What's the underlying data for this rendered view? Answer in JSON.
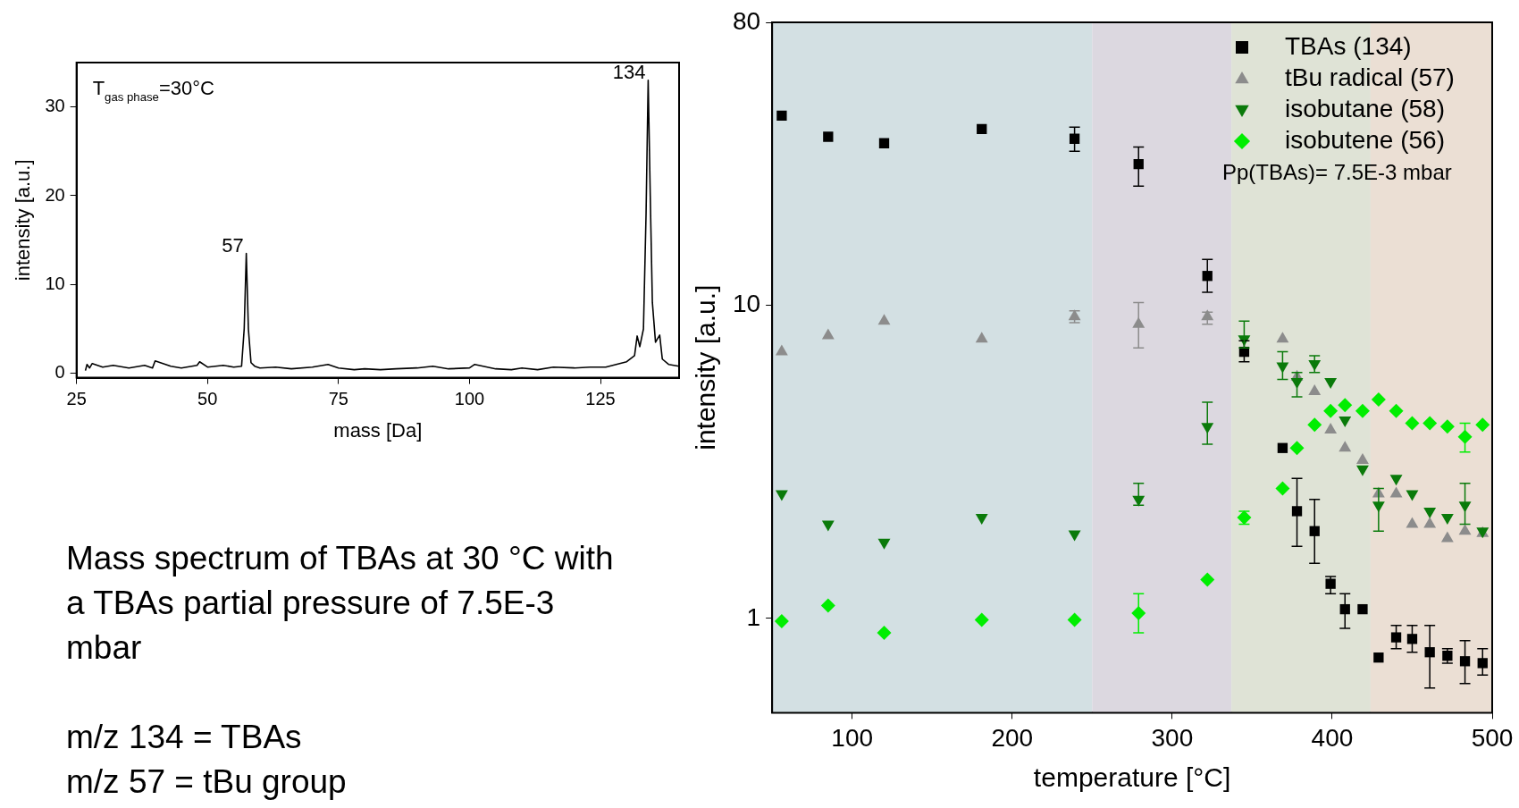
{
  "chart_data": [
    {
      "type": "line",
      "xlabel": "mass [Da]",
      "ylabel": "intensity [a.u.]",
      "xlim": [
        25,
        140
      ],
      "xticks": [
        25,
        50,
        75,
        100,
        125
      ],
      "ylim": [
        -0.5,
        35
      ],
      "yticks": [
        0,
        10,
        20,
        30
      ],
      "grid": false,
      "legend": false,
      "marker": "none",
      "annotations": [
        "T$_{gas phase}$=30°C",
        {
          "text": "57",
          "x": 57.4,
          "y": 13.5
        },
        {
          "text": "134",
          "x": 134.1,
          "y": 33
        }
      ],
      "series": [
        {
          "color": "#000000",
          "x": [
            26.7,
            27,
            27.5,
            28,
            30,
            32,
            35,
            38,
            39.5,
            40,
            43,
            45,
            48,
            48.5,
            50,
            53,
            55,
            56.5,
            57,
            57.4,
            57.8,
            58.3,
            59,
            60,
            63,
            66,
            70,
            73,
            75,
            78,
            80,
            83,
            86,
            90,
            93,
            96,
            100,
            101,
            105,
            108,
            110,
            113,
            116,
            120,
            123,
            126,
            128,
            130,
            131.5,
            132,
            132.5,
            133.2,
            133.7,
            134.1,
            134.5,
            134.9,
            135.5,
            136.3,
            136.8,
            138,
            140
          ],
          "values": [
            0.3,
            1.0,
            0.6,
            1.1,
            0.7,
            0.9,
            0.6,
            0.9,
            0.6,
            1.4,
            0.8,
            0.6,
            0.9,
            1.3,
            0.7,
            0.9,
            0.7,
            0.8,
            5,
            13.5,
            5,
            1.2,
            0.8,
            0.6,
            0.7,
            0.5,
            0.7,
            1.0,
            0.6,
            0.4,
            0.5,
            0.4,
            0.5,
            0.6,
            0.8,
            0.5,
            0.6,
            1.0,
            0.5,
            0.4,
            0.6,
            0.4,
            0.7,
            0.6,
            0.7,
            0.7,
            1.0,
            1.3,
            2.0,
            4.2,
            3.0,
            5.0,
            18,
            33,
            20,
            8,
            3.5,
            4.3,
            1.6,
            1.0,
            0.8
          ]
        }
      ]
    },
    {
      "type": "scatter",
      "xlabel": "temperature [°C]",
      "ylabel": "intensity [a.u.]",
      "xlim": [
        50,
        500
      ],
      "xticks": [
        100,
        200,
        300,
        400,
        500
      ],
      "ylim": [
        0.5,
        80
      ],
      "yticks": [
        1,
        10,
        80
      ],
      "log": "y",
      "grid": false,
      "legend": "top right",
      "annotations": [
        "Pp(TBAs)= 7.5E-3 mbar"
      ],
      "bands": [
        {
          "axis": "x",
          "from": 50,
          "to": 250,
          "color": "#d3e0e3"
        },
        {
          "axis": "x",
          "from": 250,
          "to": 337,
          "color": "#dcd8e0"
        },
        {
          "axis": "x",
          "from": 337,
          "to": 424,
          "color": "#dfe3d6"
        },
        {
          "axis": "x",
          "from": 424,
          "to": 500,
          "color": "#ebdfd4"
        }
      ],
      "x": [
        56,
        85,
        120,
        181,
        239,
        279,
        322,
        345,
        369,
        378,
        389,
        399,
        408,
        419,
        429,
        440,
        450,
        461,
        472,
        483,
        494
      ],
      "series": [
        {
          "name": "TBAs (134)",
          "color": "#000000",
          "marker": "square",
          "values": [
            40.3,
            34.5,
            32.9,
            36.5,
            34.0,
            28.2,
            12.4,
            7.1,
            3.5,
            2.2,
            1.9,
            1.29,
            1.07,
            1.07,
            0.75,
            0.87,
            0.86,
            0.78,
            0.76,
            0.73,
            0.72
          ],
          "errors": [
            null,
            null,
            null,
            null,
            [
              31,
              37
            ],
            [
              24,
              32
            ],
            [
              11,
              14
            ],
            [
              6.6,
              7.7
            ],
            null,
            [
              1.7,
              2.8
            ],
            [
              1.5,
              2.4
            ],
            [
              1.2,
              1.36
            ],
            [
              0.93,
              1.2
            ],
            null,
            null,
            [
              0.8,
              0.95
            ],
            [
              0.78,
              0.95
            ],
            [
              0.6,
              0.95
            ],
            [
              0.72,
              0.8
            ],
            [
              0.62,
              0.85
            ],
            [
              0.66,
              0.8
            ]
          ]
        },
        {
          "name": "tBu radical (57)",
          "color": "#8c8c8c",
          "marker": "triangle",
          "values": [
            7.1,
            8.0,
            8.9,
            7.8,
            9.2,
            8.7,
            9.2,
            null,
            7.8,
            5.9,
            5.3,
            4.0,
            3.5,
            3.2,
            2.5,
            2.5,
            2.0,
            2.0,
            1.8,
            1.9,
            1.87
          ],
          "errors": [
            null,
            null,
            null,
            null,
            [
              8.8,
              9.6
            ],
            [
              7.3,
              10.2
            ],
            [
              8.7,
              9.5
            ],
            null,
            null,
            null,
            null,
            null,
            null,
            null,
            null,
            null,
            null,
            null,
            null,
            null,
            null
          ]
        },
        {
          "name": "isobutane (58)",
          "color": "#0a7a0a",
          "marker": "triangle-down",
          "values": [
            2.5,
            2.0,
            1.75,
            2.1,
            1.86,
            2.4,
            4.1,
            7.8,
            6.4,
            5.7,
            6.5,
            5.7,
            4.3,
            3.0,
            2.3,
            2.8,
            2.5,
            2.2,
            2.1,
            2.3,
            1.9
          ],
          "errors": [
            null,
            null,
            null,
            null,
            null,
            [
              2.3,
              2.7
            ],
            [
              3.6,
              4.9
            ],
            [
              7.3,
              8.9
            ],
            [
              5.8,
              7.1
            ],
            [
              5.1,
              6.1
            ],
            [
              6.1,
              6.9
            ],
            null,
            null,
            null,
            [
              1.9,
              2.6
            ],
            null,
            null,
            null,
            null,
            [
              2.0,
              2.7
            ],
            null
          ]
        },
        {
          "name": "isobutene (56)",
          "color": "#00ee00",
          "marker": "diamond",
          "values": [
            0.98,
            1.1,
            0.9,
            0.99,
            0.99,
            1.04,
            1.33,
            2.1,
            2.6,
            3.5,
            4.15,
            4.6,
            4.8,
            4.6,
            5.0,
            4.6,
            4.2,
            4.2,
            4.1,
            3.8,
            4.15
          ],
          "errors": [
            null,
            null,
            null,
            null,
            null,
            [
              0.9,
              1.2
            ],
            null,
            [
              2.0,
              2.2
            ],
            null,
            null,
            null,
            null,
            null,
            null,
            null,
            null,
            null,
            null,
            null,
            [
              3.4,
              4.2
            ],
            null
          ]
        }
      ]
    },
    {
      "type": "other",
      "annotations": [
        "Mass spectrum of TBAs at 30 °C with a TBAs partial pressure of 7.5E-3 mbar",
        "m/z 134 = TBAs",
        "m/z 57 = tBu group"
      ]
    }
  ]
}
